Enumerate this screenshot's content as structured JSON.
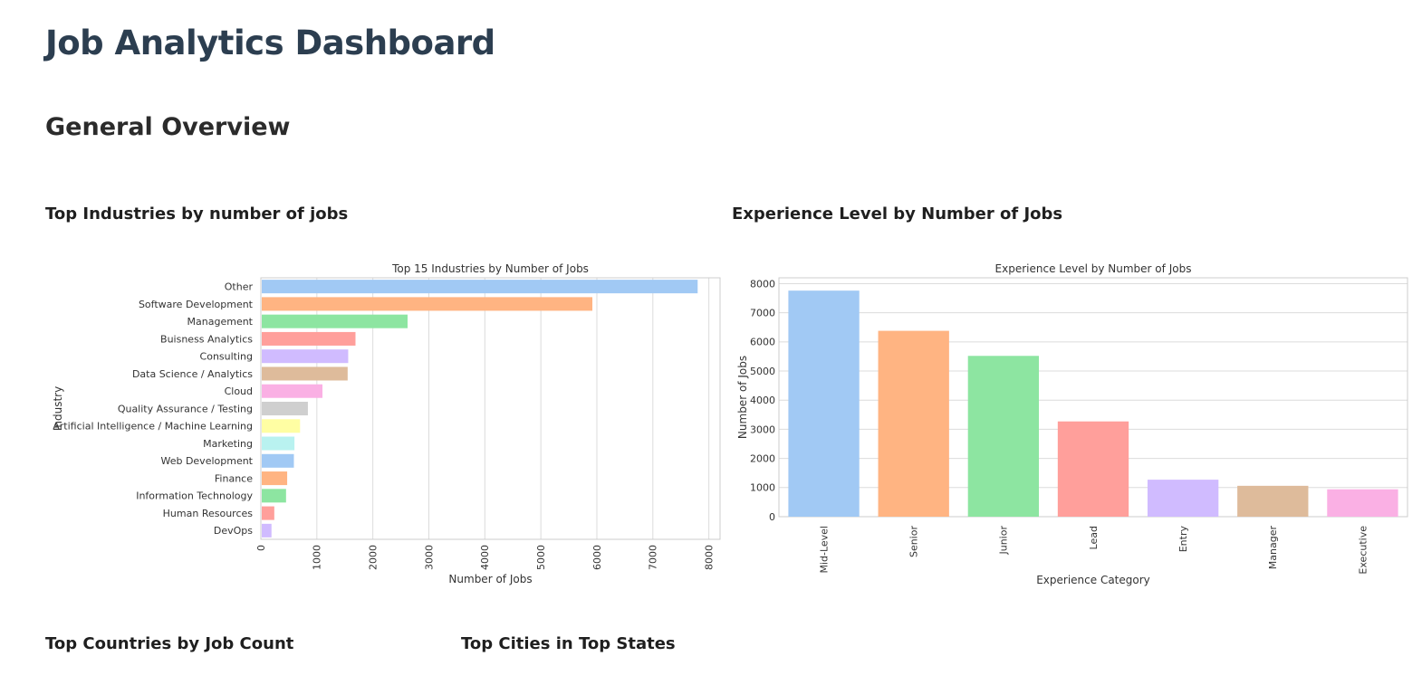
{
  "page": {
    "title": "Job Analytics Dashboard",
    "section": "General Overview",
    "subheaders": {
      "industries": "Top Industries by number of jobs",
      "experience": "Experience Level by Number of Jobs",
      "countries": "Top Countries by Job Count",
      "cities": "Top Cities in Top States"
    }
  },
  "chart_data": [
    {
      "type": "bar",
      "orientation": "horizontal",
      "title": "Top 15 Industries by Number of Jobs",
      "xlabel": "Number of Jobs",
      "ylabel": "Industry",
      "xlim": [
        0,
        8200
      ],
      "xticks": [
        0,
        1000,
        2000,
        3000,
        4000,
        5000,
        6000,
        7000,
        8000
      ],
      "grid": true,
      "categories": [
        "Other",
        "Software Development",
        "Management",
        "Buisness Analytics",
        "Consulting",
        "Data Science / Analytics",
        "Cloud",
        "Quality Assurance / Testing",
        "Artificial Intelligence / Machine Learning",
        "Marketing",
        "Web Development",
        "Finance",
        "Information Technology",
        "Human Resources",
        "DevOps"
      ],
      "values": [
        7800,
        5920,
        2620,
        1690,
        1560,
        1550,
        1100,
        840,
        700,
        600,
        590,
        470,
        450,
        240,
        190
      ],
      "colors": [
        "#a1c9f4",
        "#ffb482",
        "#8de5a1",
        "#ff9f9b",
        "#d0bbff",
        "#debb9b",
        "#fab0e4",
        "#cfcfcf",
        "#fffea3",
        "#b9f2f0",
        "#a1c9f4",
        "#ffb482",
        "#8de5a1",
        "#ff9f9b",
        "#d0bbff"
      ]
    },
    {
      "type": "bar",
      "orientation": "vertical",
      "title": "Experience Level by Number of Jobs",
      "xlabel": "Experience Category",
      "ylabel": "Number of Jobs",
      "ylim": [
        0,
        8200
      ],
      "yticks": [
        0,
        1000,
        2000,
        3000,
        4000,
        5000,
        6000,
        7000,
        8000
      ],
      "grid": true,
      "categories": [
        "Mid-Level",
        "Senior",
        "Junior",
        "Lead",
        "Entry",
        "Manager",
        "Executive"
      ],
      "values": [
        7760,
        6380,
        5520,
        3270,
        1270,
        1060,
        940
      ],
      "colors": [
        "#a1c9f4",
        "#ffb482",
        "#8de5a1",
        "#ff9f9b",
        "#d0bbff",
        "#debb9b",
        "#fab0e4"
      ]
    }
  ]
}
